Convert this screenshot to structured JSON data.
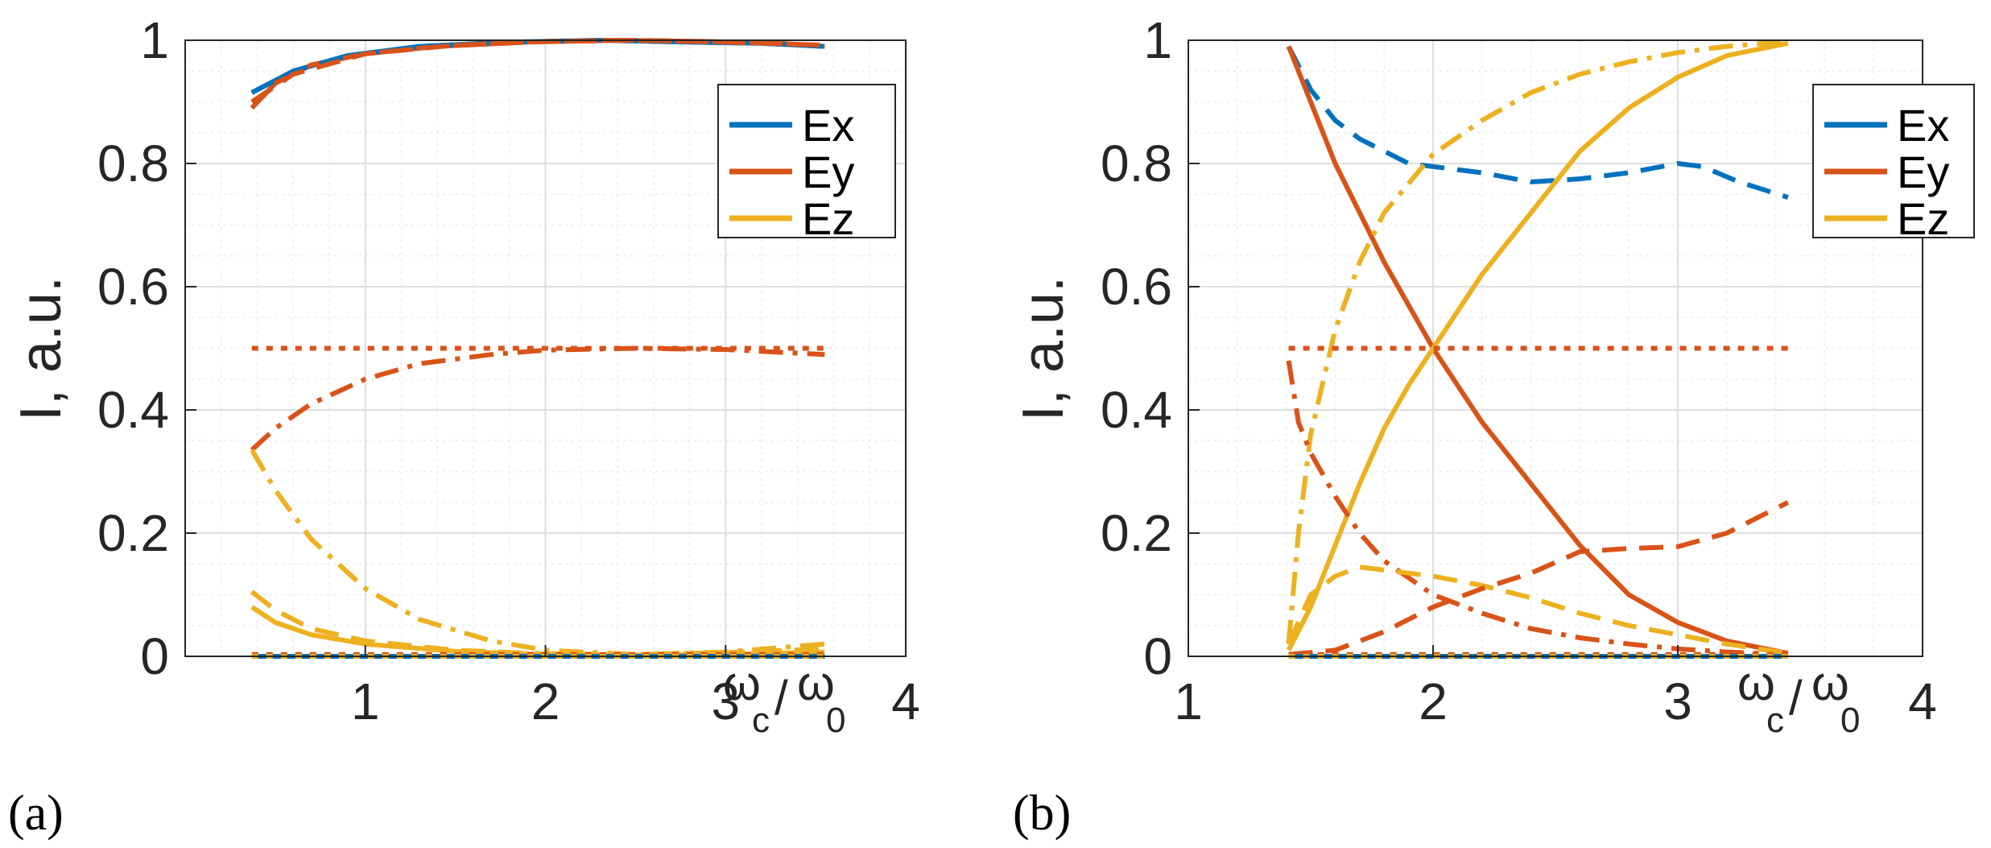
{
  "colors": {
    "Ex": "#0072BD",
    "Ey": "#D95319",
    "Ez": "#EDB120",
    "grid_major": "#dedede",
    "grid_minor": "#ececec",
    "axis": "#262626"
  },
  "chart_data": [
    {
      "type": "line",
      "panel_label": "(a)",
      "xlim": [
        0,
        4
      ],
      "ylim": [
        0,
        1
      ],
      "xticks": [
        {
          "v": 1,
          "label": "1"
        },
        {
          "v": 2,
          "label": "2"
        },
        {
          "v": 3,
          "label": "3"
        },
        {
          "v": 4,
          "label": "4"
        }
      ],
      "yticks": [
        {
          "v": 0,
          "label": "0"
        },
        {
          "v": 0.2,
          "label": "0.2"
        },
        {
          "v": 0.4,
          "label": "0.4"
        },
        {
          "v": 0.6,
          "label": "0.6"
        },
        {
          "v": 0.8,
          "label": "0.8"
        },
        {
          "v": 1,
          "label": "1"
        }
      ],
      "ylabel": "I, a.u.",
      "xlabel": {
        "symbol": "ω",
        "sub1": "c",
        "slash": "/",
        "sub2": "0"
      },
      "legend": [
        "Ex",
        "Ey",
        "Ez"
      ],
      "legend_loc": "top-right",
      "grid": true,
      "series": [
        {
          "name": "Ex solid",
          "color": "Ex",
          "dash": "solid",
          "points": [
            [
              0.37,
              0.915
            ],
            [
              0.6,
              0.95
            ],
            [
              0.9,
              0.975
            ],
            [
              1.3,
              0.99
            ],
            [
              1.8,
              0.997
            ],
            [
              2.3,
              1.0
            ],
            [
              2.8,
              0.997
            ],
            [
              3.2,
              0.995
            ],
            [
              3.55,
              0.99
            ]
          ]
        },
        {
          "name": "Ey solid",
          "color": "Ey",
          "dash": "solid",
          "points": [
            [
              0.37,
              0.89
            ],
            [
              0.5,
              0.93
            ],
            [
              0.7,
              0.96
            ],
            [
              1.0,
              0.978
            ],
            [
              1.4,
              0.99
            ],
            [
              1.9,
              0.997
            ],
            [
              2.4,
              1.0
            ],
            [
              2.9,
              0.998
            ],
            [
              3.3,
              0.995
            ],
            [
              3.55,
              0.99
            ]
          ]
        },
        {
          "name": "Ex dashed",
          "color": "Ex",
          "dash": "dash",
          "points": [
            [
              0.37,
              0.915
            ],
            [
              0.6,
              0.95
            ],
            [
              0.9,
              0.975
            ],
            [
              1.3,
              0.99
            ],
            [
              1.8,
              0.997
            ],
            [
              2.3,
              1.0
            ],
            [
              2.8,
              0.997
            ],
            [
              3.2,
              0.995
            ],
            [
              3.55,
              0.99
            ]
          ]
        },
        {
          "name": "Ey dashed",
          "color": "Ey",
          "dash": "dash",
          "points": [
            [
              0.37,
              0.9
            ],
            [
              0.6,
              0.945
            ],
            [
              1.0,
              0.978
            ],
            [
              1.5,
              0.992
            ],
            [
              2.0,
              0.998
            ],
            [
              2.5,
              1.0
            ],
            [
              3.0,
              0.997
            ],
            [
              3.55,
              0.992
            ]
          ]
        },
        {
          "name": "Ey dotted",
          "color": "Ey",
          "dash": "dot",
          "points": [
            [
              0.37,
              0.5
            ],
            [
              3.55,
              0.5
            ]
          ]
        },
        {
          "name": "Ey dash-dot",
          "color": "Ey",
          "dash": "dashdot",
          "points": [
            [
              0.37,
              0.335
            ],
            [
              0.5,
              0.37
            ],
            [
              0.7,
              0.41
            ],
            [
              1.0,
              0.45
            ],
            [
              1.3,
              0.475
            ],
            [
              1.7,
              0.49
            ],
            [
              2.0,
              0.497
            ],
            [
              2.5,
              0.5
            ],
            [
              3.0,
              0.498
            ],
            [
              3.55,
              0.49
            ]
          ]
        },
        {
          "name": "Ez dash-dot",
          "color": "Ez",
          "dash": "dashdot",
          "points": [
            [
              0.37,
              0.335
            ],
            [
              0.5,
              0.27
            ],
            [
              0.7,
              0.19
            ],
            [
              1.0,
              0.11
            ],
            [
              1.3,
              0.06
            ],
            [
              1.7,
              0.025
            ],
            [
              2.0,
              0.01
            ],
            [
              2.5,
              0.003
            ],
            [
              3.0,
              0.007
            ],
            [
              3.55,
              0.02
            ]
          ]
        },
        {
          "name": "Ez solid",
          "color": "Ez",
          "dash": "solid",
          "points": [
            [
              0.37,
              0.08
            ],
            [
              0.5,
              0.055
            ],
            [
              0.7,
              0.035
            ],
            [
              1.0,
              0.02
            ],
            [
              1.5,
              0.008
            ],
            [
              2.0,
              0.003
            ],
            [
              2.5,
              0.002
            ],
            [
              3.0,
              0.003
            ],
            [
              3.55,
              0.007
            ]
          ]
        },
        {
          "name": "Ez dashed",
          "color": "Ez",
          "dash": "dash",
          "points": [
            [
              0.37,
              0.105
            ],
            [
              0.5,
              0.075
            ],
            [
              0.7,
              0.045
            ],
            [
              1.0,
              0.025
            ],
            [
              1.5,
              0.01
            ],
            [
              2.0,
              0.004
            ],
            [
              2.5,
              0.003
            ],
            [
              3.0,
              0.006
            ],
            [
              3.55,
              0.012
            ]
          ]
        },
        {
          "name": "Ex zero solid",
          "color": "Ex",
          "dash": "solid",
          "points": [
            [
              0.37,
              0
            ],
            [
              3.55,
              0
            ]
          ]
        },
        {
          "name": "Ey zero dotted",
          "color": "Ey",
          "dash": "dot",
          "points": [
            [
              0.37,
              0.003
            ],
            [
              3.55,
              0.003
            ]
          ]
        },
        {
          "name": "Ez zero dotted",
          "color": "Ez",
          "dash": "dot",
          "points": [
            [
              0.37,
              0.0
            ],
            [
              3.55,
              0.0
            ]
          ]
        }
      ]
    },
    {
      "type": "line",
      "panel_label": "(b)",
      "xlim": [
        1,
        4
      ],
      "ylim": [
        0,
        1
      ],
      "xticks": [
        {
          "v": 1,
          "label": "1"
        },
        {
          "v": 2,
          "label": "2"
        },
        {
          "v": 3,
          "label": "3"
        },
        {
          "v": 4,
          "label": "4"
        }
      ],
      "yticks": [
        {
          "v": 0,
          "label": "0"
        },
        {
          "v": 0.2,
          "label": "0.2"
        },
        {
          "v": 0.4,
          "label": "0.4"
        },
        {
          "v": 0.6,
          "label": "0.6"
        },
        {
          "v": 0.8,
          "label": "0.8"
        },
        {
          "v": 1,
          "label": "1"
        }
      ],
      "ylabel": "I, a.u.",
      "xlabel": {
        "symbol": "ω",
        "sub1": "c",
        "slash": "/",
        "sub2": "0"
      },
      "legend": [
        "Ex",
        "Ey",
        "Ez"
      ],
      "legend_loc": "top-right",
      "grid": true,
      "series": [
        {
          "name": "Ex dashed",
          "color": "Ex",
          "dash": "dash",
          "points": [
            [
              1.41,
              0.99
            ],
            [
              1.5,
              0.92
            ],
            [
              1.6,
              0.87
            ],
            [
              1.7,
              0.84
            ],
            [
              1.8,
              0.82
            ],
            [
              1.9,
              0.8
            ],
            [
              2.0,
              0.795
            ],
            [
              2.2,
              0.785
            ],
            [
              2.4,
              0.77
            ],
            [
              2.6,
              0.775
            ],
            [
              2.8,
              0.785
            ],
            [
              3.0,
              0.8
            ],
            [
              3.1,
              0.795
            ],
            [
              3.25,
              0.77
            ],
            [
              3.45,
              0.745
            ]
          ]
        },
        {
          "name": "Ey solid",
          "color": "Ey",
          "dash": "solid",
          "points": [
            [
              1.41,
              0.99
            ],
            [
              1.5,
              0.9
            ],
            [
              1.6,
              0.8
            ],
            [
              1.7,
              0.72
            ],
            [
              1.8,
              0.64
            ],
            [
              1.9,
              0.57
            ],
            [
              2.0,
              0.5
            ],
            [
              2.2,
              0.38
            ],
            [
              2.4,
              0.28
            ],
            [
              2.6,
              0.18
            ],
            [
              2.8,
              0.1
            ],
            [
              3.0,
              0.055
            ],
            [
              3.2,
              0.025
            ],
            [
              3.45,
              0.005
            ]
          ]
        },
        {
          "name": "Ez solid",
          "color": "Ez",
          "dash": "solid",
          "points": [
            [
              1.41,
              0.01
            ],
            [
              1.5,
              0.08
            ],
            [
              1.6,
              0.18
            ],
            [
              1.7,
              0.28
            ],
            [
              1.8,
              0.37
            ],
            [
              1.9,
              0.44
            ],
            [
              2.0,
              0.5
            ],
            [
              2.2,
              0.62
            ],
            [
              2.4,
              0.72
            ],
            [
              2.6,
              0.82
            ],
            [
              2.8,
              0.89
            ],
            [
              3.0,
              0.94
            ],
            [
              3.2,
              0.975
            ],
            [
              3.45,
              0.995
            ]
          ]
        },
        {
          "name": "Ez dash-dot",
          "color": "Ez",
          "dash": "dashdot",
          "points": [
            [
              1.41,
              0.02
            ],
            [
              1.45,
              0.2
            ],
            [
              1.5,
              0.36
            ],
            [
              1.6,
              0.53
            ],
            [
              1.7,
              0.64
            ],
            [
              1.8,
              0.72
            ],
            [
              2.0,
              0.815
            ],
            [
              2.2,
              0.87
            ],
            [
              2.4,
              0.915
            ],
            [
              2.6,
              0.945
            ],
            [
              2.8,
              0.965
            ],
            [
              3.0,
              0.98
            ],
            [
              3.2,
              0.99
            ],
            [
              3.45,
              0.998
            ]
          ]
        },
        {
          "name": "Ey dash-dot",
          "color": "Ey",
          "dash": "dashdot",
          "points": [
            [
              1.41,
              0.48
            ],
            [
              1.45,
              0.38
            ],
            [
              1.5,
              0.33
            ],
            [
              1.6,
              0.26
            ],
            [
              1.7,
              0.2
            ],
            [
              1.8,
              0.155
            ],
            [
              2.0,
              0.1
            ],
            [
              2.2,
              0.07
            ],
            [
              2.4,
              0.045
            ],
            [
              2.6,
              0.03
            ],
            [
              2.8,
              0.02
            ],
            [
              3.0,
              0.012
            ],
            [
              3.2,
              0.007
            ],
            [
              3.45,
              0.003
            ]
          ]
        },
        {
          "name": "Ez dashed",
          "color": "Ez",
          "dash": "dash",
          "points": [
            [
              1.41,
              0.02
            ],
            [
              1.5,
              0.1
            ],
            [
              1.6,
              0.13
            ],
            [
              1.7,
              0.145
            ],
            [
              1.8,
              0.14
            ],
            [
              1.9,
              0.135
            ],
            [
              2.0,
              0.13
            ],
            [
              2.2,
              0.115
            ],
            [
              2.4,
              0.095
            ],
            [
              2.6,
              0.07
            ],
            [
              2.8,
              0.05
            ],
            [
              3.0,
              0.035
            ],
            [
              3.2,
              0.02
            ],
            [
              3.45,
              0.005
            ]
          ]
        },
        {
          "name": "Ey dashed",
          "color": "Ey",
          "dash": "dash",
          "points": [
            [
              1.41,
              0.003
            ],
            [
              1.6,
              0.01
            ],
            [
              1.8,
              0.04
            ],
            [
              2.0,
              0.08
            ],
            [
              2.2,
              0.11
            ],
            [
              2.4,
              0.135
            ],
            [
              2.6,
              0.17
            ],
            [
              2.8,
              0.175
            ],
            [
              3.0,
              0.178
            ],
            [
              3.2,
              0.2
            ],
            [
              3.45,
              0.25
            ]
          ]
        },
        {
          "name": "Ey dotted",
          "color": "Ey",
          "dash": "dot",
          "points": [
            [
              1.41,
              0.5
            ],
            [
              3.45,
              0.5
            ]
          ]
        },
        {
          "name": "Ex zero solid",
          "color": "Ex",
          "dash": "solid",
          "points": [
            [
              1.41,
              0
            ],
            [
              3.45,
              0
            ]
          ]
        },
        {
          "name": "Ey zero dotted",
          "color": "Ey",
          "dash": "dot",
          "points": [
            [
              1.41,
              0.003
            ],
            [
              3.45,
              0.003
            ]
          ]
        },
        {
          "name": "Ez zero dotted",
          "color": "Ez",
          "dash": "dot",
          "points": [
            [
              1.41,
              0.0
            ],
            [
              3.45,
              0.0
            ]
          ]
        }
      ]
    }
  ]
}
